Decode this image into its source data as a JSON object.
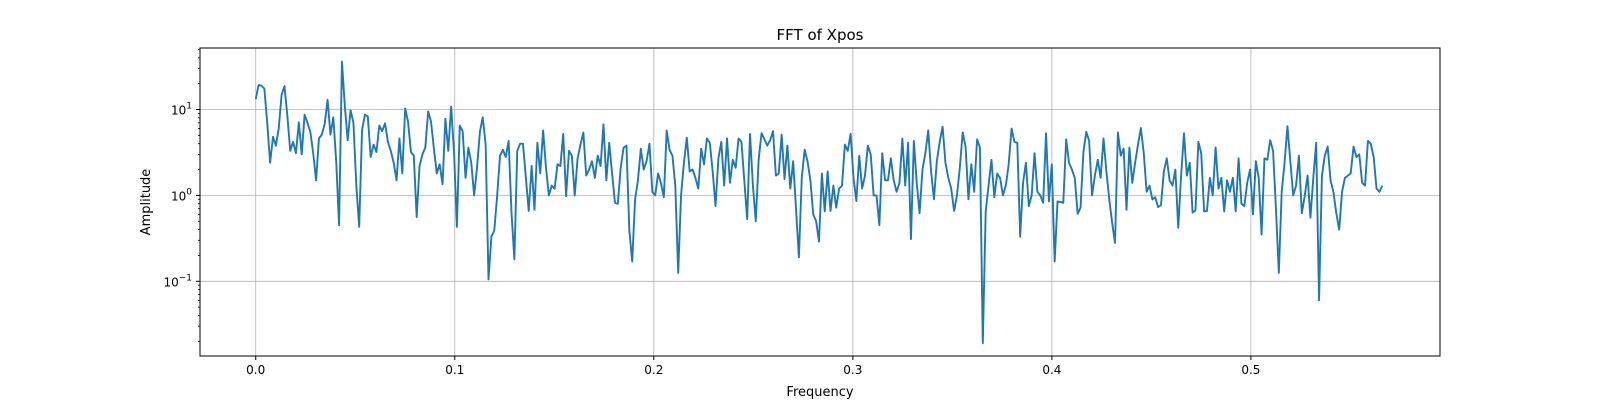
{
  "chart_data": {
    "type": "line",
    "title": "FFT of Xpos",
    "xlabel": "Frequency",
    "ylabel": "Amplitude",
    "xlim": [
      -0.028,
      0.595
    ],
    "ylim": [
      0.0135,
      52
    ],
    "yscale": "log",
    "grid": true,
    "x_ticks": [
      {
        "value": 0.0,
        "label": "0.0"
      },
      {
        "value": 0.1,
        "label": "0.1"
      },
      {
        "value": 0.2,
        "label": "0.2"
      },
      {
        "value": 0.3,
        "label": "0.3"
      },
      {
        "value": 0.4,
        "label": "0.4"
      },
      {
        "value": 0.5,
        "label": "0.5"
      }
    ],
    "y_ticks": [
      {
        "value": 0.1,
        "base": "10",
        "exp": "−1"
      },
      {
        "value": 1,
        "base": "10",
        "exp": "0"
      },
      {
        "value": 10,
        "base": "10",
        "exp": "1"
      }
    ],
    "series": [
      {
        "color": "#1f77b4",
        "x_start": 0.0,
        "x_end": 0.566,
        "values": [
          13.2,
          19.3,
          18.9,
          17.5,
          7.0,
          2.4,
          4.8,
          3.8,
          6.0,
          14.8,
          18.7,
          8.5,
          3.3,
          4.2,
          3.1,
          7.1,
          3.0,
          8.7,
          7.0,
          5.5,
          3.1,
          1.5,
          4.6,
          5.1,
          6.8,
          13.0,
          5.1,
          8.1,
          2.5,
          0.45,
          36.0,
          11.0,
          4.4,
          9.8,
          7.0,
          1.3,
          0.43,
          5.8,
          8.7,
          8.3,
          2.8,
          3.9,
          3.2,
          6.5,
          5.6,
          6.9,
          4.2,
          3.3,
          2.4,
          1.5,
          4.6,
          1.8,
          10.3,
          7.2,
          3.2,
          2.9,
          0.56,
          2.2,
          3.0,
          3.6,
          9.5,
          7.2,
          3.5,
          1.8,
          2.3,
          1.35,
          7.8,
          3.3,
          10.8,
          3.2,
          0.43,
          6.5,
          5.6,
          1.6,
          3.6,
          2.4,
          1.0,
          2.1,
          5.5,
          8.1,
          3.9,
          0.105,
          0.33,
          0.39,
          0.98,
          2.9,
          3.4,
          2.8,
          4.3,
          0.63,
          0.18,
          3.3,
          4.0,
          4.0,
          1.6,
          0.66,
          2.2,
          0.68,
          4.1,
          1.8,
          5.7,
          2.1,
          1.0,
          1.3,
          1.2,
          2.3,
          2.2,
          5.2,
          0.98,
          3.3,
          2.9,
          1.0,
          2.7,
          3.9,
          5.4,
          1.7,
          2.0,
          2.5,
          1.6,
          2.9,
          2.2,
          6.7,
          1.5,
          4.1,
          1.8,
          0.82,
          0.8,
          2.1,
          3.6,
          3.8,
          0.39,
          0.17,
          0.9,
          1.5,
          3.5,
          2.0,
          2.5,
          4.0,
          1.1,
          1.0,
          1.8,
          1.4,
          0.95,
          5.7,
          3.4,
          2.9,
          1.3,
          0.125,
          1.0,
          2.4,
          4.7,
          1.9,
          2.0,
          1.6,
          1.2,
          3.5,
          2.3,
          4.6,
          4.1,
          1.9,
          0.75,
          2.7,
          4.2,
          1.3,
          4.6,
          1.4,
          2.6,
          2.1,
          4.6,
          4.2,
          1.5,
          0.53,
          5.2,
          1.3,
          0.5,
          2.6,
          5.3,
          4.5,
          3.8,
          4.4,
          5.6,
          1.7,
          1.8,
          5.1,
          1.55,
          3.8,
          1.2,
          2.5,
          0.7,
          0.19,
          1.6,
          3.4,
          2.5,
          1.5,
          0.6,
          0.5,
          0.29,
          1.8,
          0.65,
          1.9,
          0.66,
          1.3,
          0.72,
          1.2,
          1.3,
          3.9,
          3.3,
          5.2,
          1.6,
          0.86,
          2.9,
          1.2,
          1.7,
          3.8,
          3.0,
          1.0,
          1.0,
          0.45,
          3.1,
          1.5,
          1.5,
          2.7,
          1.5,
          1.1,
          1.4,
          4.6,
          1.3,
          4.1,
          0.31,
          4.3,
          1.4,
          0.62,
          2.0,
          3.1,
          5.7,
          1.9,
          0.9,
          2.5,
          4.2,
          6.3,
          2.4,
          1.6,
          1.2,
          0.66,
          1.0,
          2.1,
          5.4,
          3.7,
          0.9,
          2.3,
          1.1,
          4.5,
          3.6,
          0.019,
          0.65,
          1.3,
          2.6,
          0.95,
          1.8,
          1.6,
          1.0,
          1.3,
          2.3,
          6.0,
          4.2,
          4.1,
          0.33,
          1.4,
          2.4,
          0.75,
          1.0,
          3.1,
          1.1,
          1.0,
          0.82,
          5.3,
          0.85,
          2.3,
          0.17,
          0.85,
          0.84,
          0.82,
          4.5,
          2.4,
          2.0,
          1.6,
          0.61,
          0.72,
          3.2,
          5.5,
          4.3,
          1.0,
          1.7,
          2.6,
          1.6,
          4.6,
          1.9,
          0.9,
          0.48,
          0.28,
          5.4,
          2.9,
          3.5,
          0.68,
          3.6,
          1.4,
          2.4,
          3.9,
          6.1,
          3.1,
          1.1,
          1.3,
          0.9,
          0.95,
          0.73,
          0.77,
          1.9,
          2.7,
          1.5,
          1.3,
          2.0,
          0.42,
          1.7,
          5.3,
          1.7,
          2.4,
          0.63,
          0.67,
          4.2,
          3.1,
          0.65,
          0.66,
          1.6,
          1.0,
          3.6,
          1.2,
          1.6,
          0.65,
          1.5,
          1.1,
          1.6,
          0.65,
          2.7,
          0.8,
          0.75,
          1.4,
          2.0,
          0.6,
          2.5,
          1.6,
          0.35,
          2.7,
          2.6,
          4.4,
          3.3,
          0.7,
          0.125,
          1.1,
          2.4,
          6.4,
          2.5,
          1.0,
          1.3,
          2.9,
          0.62,
          0.98,
          1.7,
          0.55,
          1.6,
          4.1,
          0.06,
          1.7,
          2.9,
          3.7,
          1.5,
          1.1,
          0.62,
          0.4,
          1.1,
          1.6,
          1.7,
          1.8,
          3.7,
          2.8,
          3.0,
          1.4,
          1.3,
          4.3,
          4.0,
          2.8,
          1.2,
          1.1,
          1.3
        ]
      }
    ]
  }
}
